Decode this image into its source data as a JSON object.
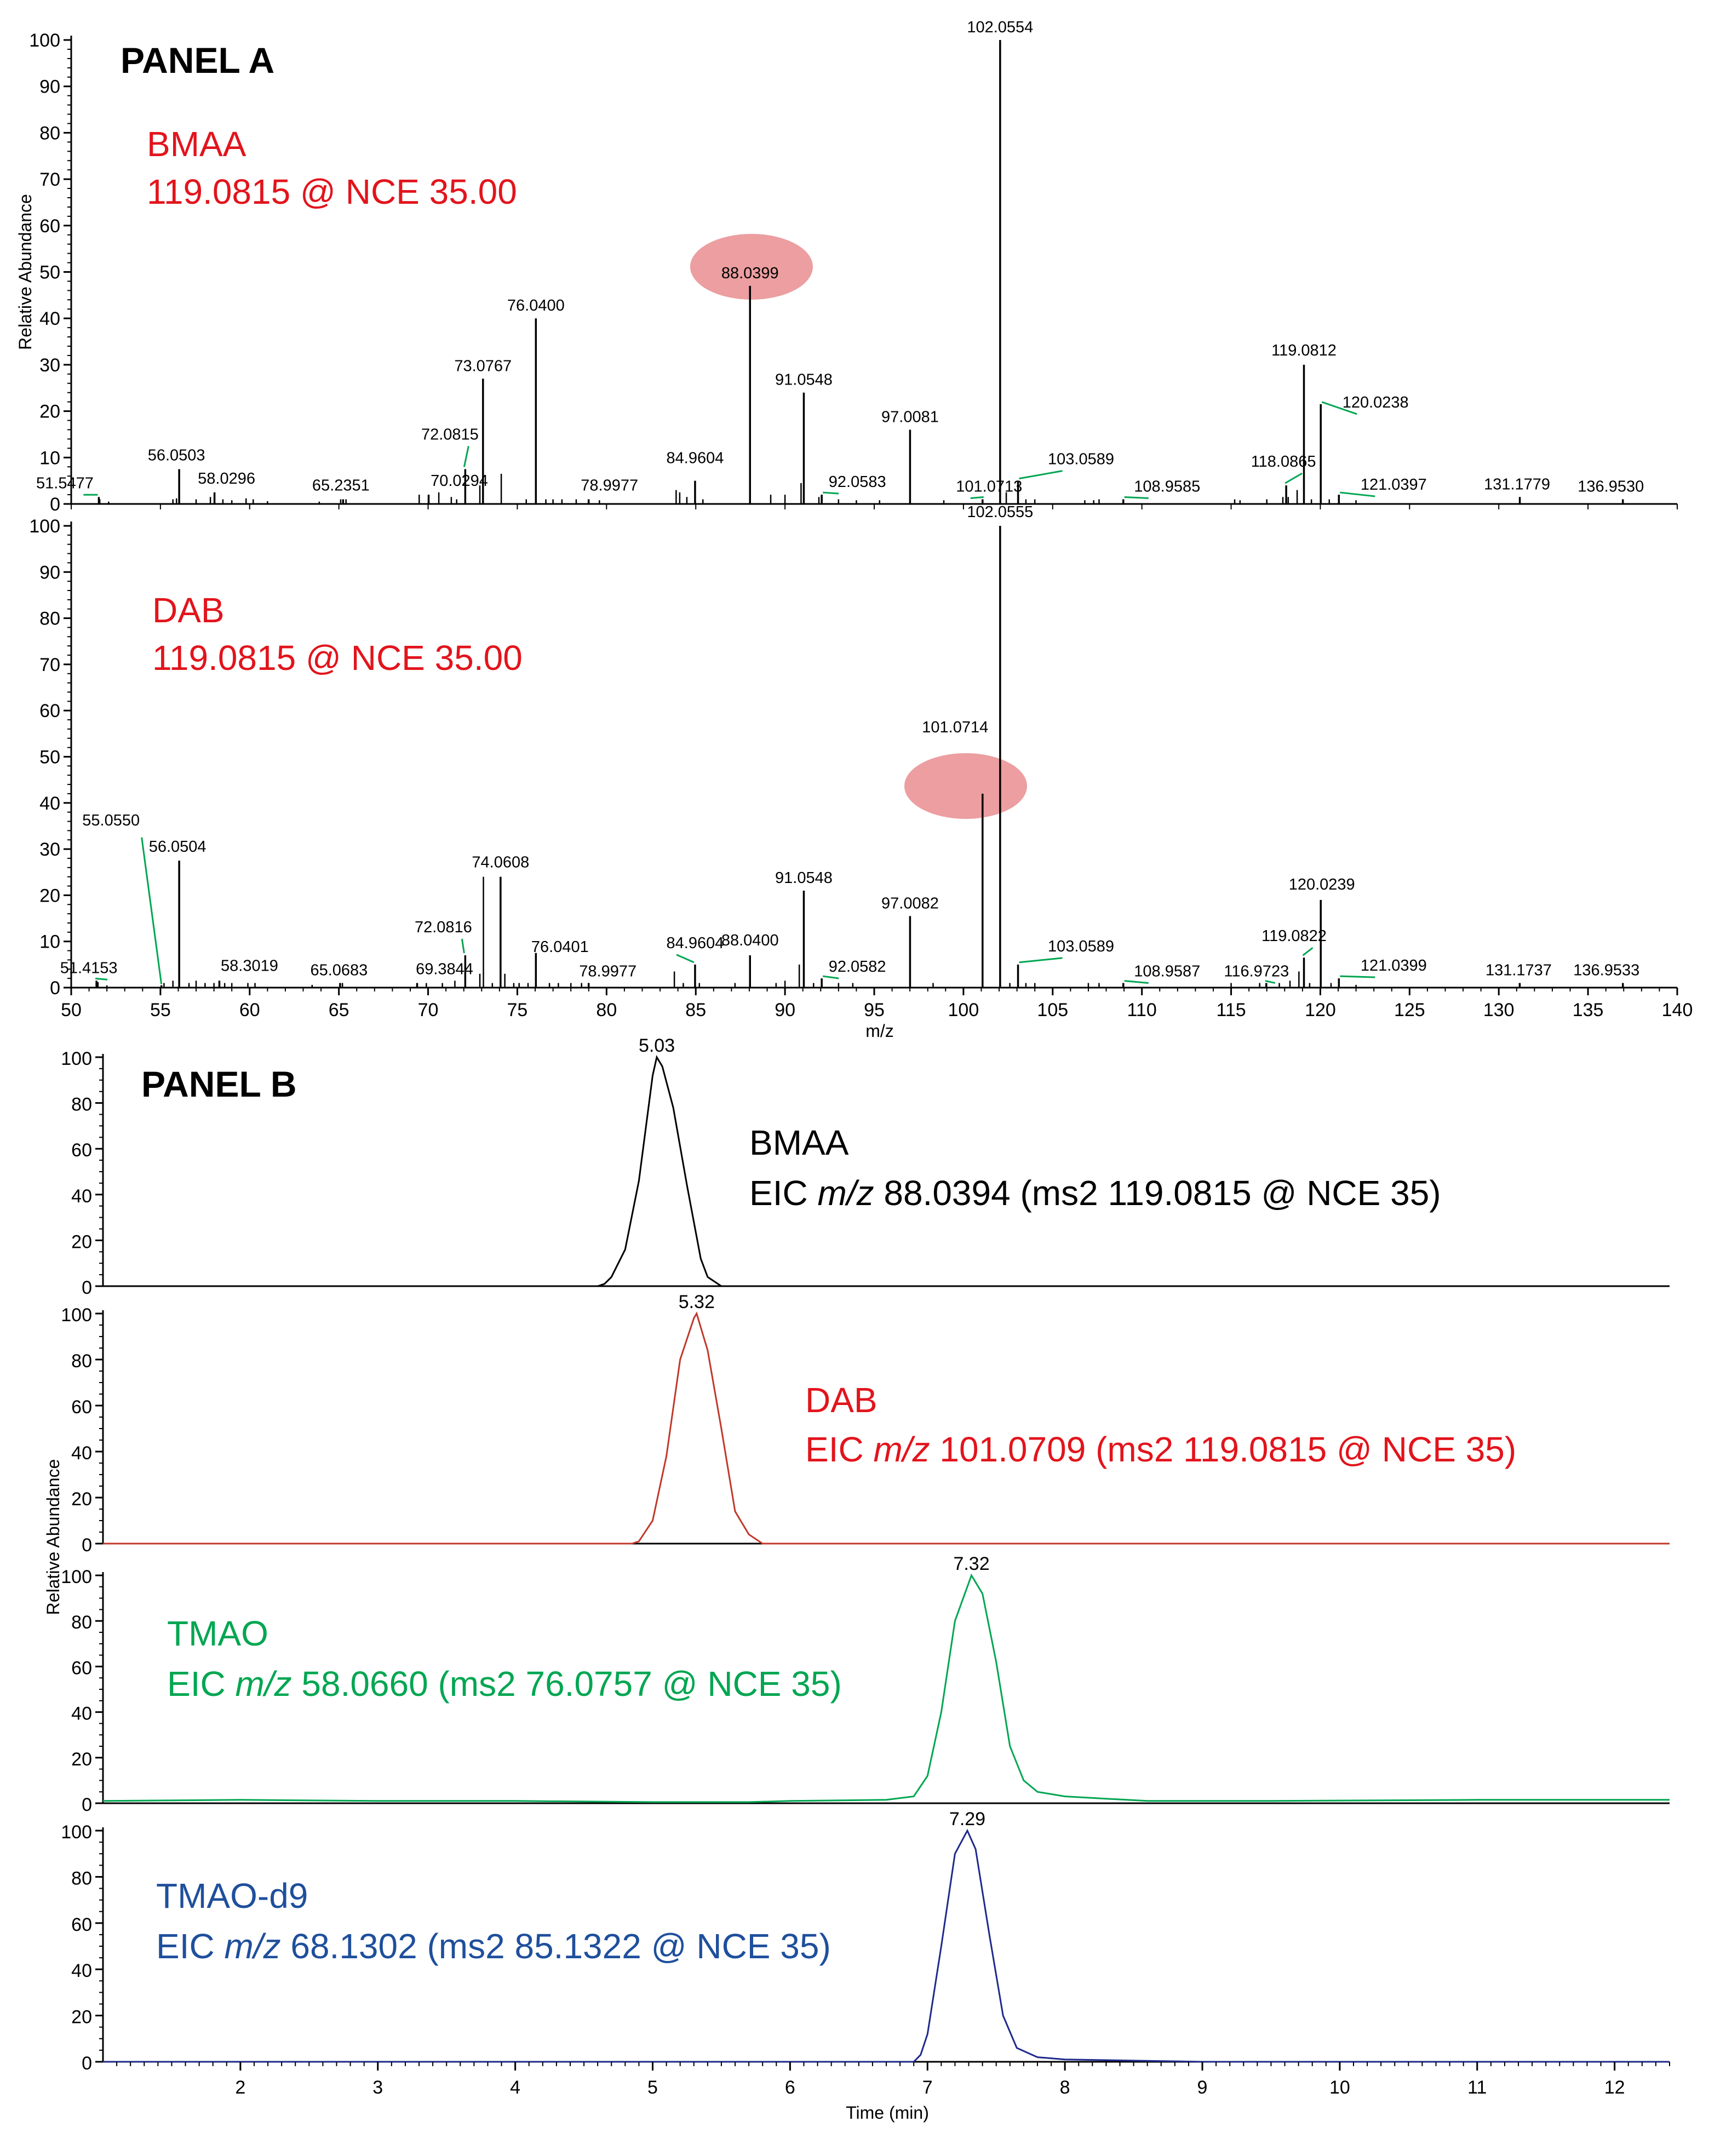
{
  "panel_a_title": "PANEL A",
  "panel_b_title": "PANEL B",
  "colors": {
    "red": "#e2141c",
    "green": "#00a651",
    "blue": "#1f4f9c",
    "black": "#000000",
    "highlight": "#e8898b"
  },
  "chart_data": [
    {
      "type": "bar",
      "subtype": "mass-spectrum",
      "panel": "A",
      "title": "",
      "ylabel": "Relative Abundance",
      "xlabel": "",
      "xlim": [
        50,
        140
      ],
      "ylim": [
        0,
        100
      ],
      "yticks": [
        "0",
        "10",
        "20",
        "30",
        "40",
        "50",
        "60",
        "70",
        "80",
        "90",
        "100"
      ],
      "annotation": {
        "line1": "BMAA",
        "line2": "119.0815 @ NCE 35.00",
        "color": "#e2141c"
      },
      "highlighted_peak": "88.0399",
      "peaks": [
        {
          "mz": 51.5477,
          "rel": 1.5,
          "label": "51.5477",
          "leader": true
        },
        {
          "mz": 56.0503,
          "rel": 7.5,
          "label": "56.0503"
        },
        {
          "mz": 58.0296,
          "rel": 2.5,
          "label": "58.0296"
        },
        {
          "mz": 65.2351,
          "rel": 1.0,
          "label": "65.2351"
        },
        {
          "mz": 70.0294,
          "rel": 2.0,
          "label": "70.0294"
        },
        {
          "mz": 72.0815,
          "rel": 7.5,
          "label": "72.0815",
          "leader": true
        },
        {
          "mz": 73.0767,
          "rel": 27.0,
          "label": "73.0767"
        },
        {
          "mz": 76.04,
          "rel": 40.0,
          "label": "76.0400"
        },
        {
          "mz": 78.9977,
          "rel": 1.0,
          "label": "78.9977"
        },
        {
          "mz": 84.9604,
          "rel": 5.0,
          "label": "84.9604"
        },
        {
          "mz": 88.0399,
          "rel": 47.0,
          "label": "88.0399"
        },
        {
          "mz": 91.0548,
          "rel": 24.0,
          "label": "91.0548"
        },
        {
          "mz": 92.0583,
          "rel": 2.0,
          "label": "92.0583",
          "leader": true
        },
        {
          "mz": 97.0081,
          "rel": 16.0,
          "label": "97.0081"
        },
        {
          "mz": 101.0713,
          "rel": 1.0,
          "label": "101.0713",
          "leader": true
        },
        {
          "mz": 102.0554,
          "rel": 100.0,
          "label": "102.0554"
        },
        {
          "mz": 103.0589,
          "rel": 5.0,
          "label": "103.0589",
          "leader": true
        },
        {
          "mz": 108.9585,
          "rel": 1.0,
          "label": "108.9585",
          "leader": true
        },
        {
          "mz": 118.0865,
          "rel": 4.0,
          "label": "118.0865",
          "leader": true
        },
        {
          "mz": 119.0812,
          "rel": 30.0,
          "label": "119.0812"
        },
        {
          "mz": 120.0238,
          "rel": 21.5,
          "label": "120.0238",
          "leader": true
        },
        {
          "mz": 121.0397,
          "rel": 2.0,
          "label": "121.0397",
          "leader": true
        },
        {
          "mz": 131.1779,
          "rel": 1.5,
          "label": "131.1779"
        },
        {
          "mz": 136.953,
          "rel": 1.0,
          "label": "136.9530"
        }
      ],
      "minor_peaks": [
        [
          51.6,
          1.0
        ],
        [
          52.1,
          0.5
        ],
        [
          55.7,
          1.0
        ],
        [
          55.9,
          1.2
        ],
        [
          57.0,
          1.0
        ],
        [
          57.8,
          1.5
        ],
        [
          58.5,
          1.0
        ],
        [
          59.0,
          0.8
        ],
        [
          59.8,
          1.2
        ],
        [
          60.2,
          1.0
        ],
        [
          61.0,
          0.6
        ],
        [
          63.9,
          0.5
        ],
        [
          65.1,
          1.0
        ],
        [
          65.4,
          1.0
        ],
        [
          69.5,
          2.0
        ],
        [
          70.6,
          2.5
        ],
        [
          71.3,
          1.5
        ],
        [
          71.6,
          1.0
        ],
        [
          72.9,
          4.0
        ],
        [
          74.1,
          6.5
        ],
        [
          75.5,
          1.0
        ],
        [
          76.6,
          1.0
        ],
        [
          77.0,
          1.0
        ],
        [
          77.5,
          1.0
        ],
        [
          78.3,
          1.0
        ],
        [
          79.6,
          0.8
        ],
        [
          83.9,
          3.0
        ],
        [
          84.1,
          2.5
        ],
        [
          84.5,
          1.5
        ],
        [
          85.4,
          1.0
        ],
        [
          89.2,
          2.0
        ],
        [
          90.0,
          2.0
        ],
        [
          90.9,
          4.5
        ],
        [
          91.9,
          1.5
        ],
        [
          93.0,
          1.0
        ],
        [
          94.0,
          0.8
        ],
        [
          95.3,
          0.8
        ],
        [
          98.9,
          0.8
        ],
        [
          102.4,
          2.5
        ],
        [
          103.5,
          1.0
        ],
        [
          104.0,
          1.0
        ],
        [
          106.8,
          0.8
        ],
        [
          107.3,
          0.8
        ],
        [
          107.6,
          1.0
        ],
        [
          115.2,
          1.0
        ],
        [
          115.5,
          0.8
        ],
        [
          117.0,
          1.0
        ],
        [
          117.9,
          1.5
        ],
        [
          118.2,
          1.5
        ],
        [
          118.7,
          3.0
        ],
        [
          119.5,
          1.0
        ],
        [
          120.5,
          1.0
        ],
        [
          122.0,
          0.8
        ]
      ]
    },
    {
      "type": "bar",
      "subtype": "mass-spectrum",
      "panel": "A",
      "title": "",
      "ylabel": "",
      "xlabel": "m/z",
      "xlim": [
        50,
        140
      ],
      "ylim": [
        0,
        100
      ],
      "yticks": [
        "0",
        "10",
        "20",
        "30",
        "40",
        "50",
        "60",
        "70",
        "80",
        "90",
        "100"
      ],
      "xticks": [
        "50",
        "55",
        "60",
        "65",
        "70",
        "75",
        "80",
        "85",
        "90",
        "95",
        "100",
        "105",
        "110",
        "115",
        "120",
        "125",
        "130",
        "135",
        "140"
      ],
      "annotation": {
        "line1": "DAB",
        "line2": "119.0815 @ NCE 35.00",
        "color": "#e2141c"
      },
      "highlighted_peak": "101.0714",
      "peaks": [
        {
          "mz": 51.4153,
          "rel": 1.5,
          "label": "51.4153",
          "leader": true
        },
        {
          "mz": 55.055,
          "rel": 0.5,
          "label": "55.0550",
          "leader": true
        },
        {
          "mz": 56.0504,
          "rel": 27.5,
          "label": "56.0504"
        },
        {
          "mz": 58.3019,
          "rel": 1.5,
          "label": "58.3019"
        },
        {
          "mz": 65.0683,
          "rel": 1.0,
          "label": "65.0683"
        },
        {
          "mz": 69.3844,
          "rel": 1.0,
          "label": "69.3844"
        },
        {
          "mz": 72.0816,
          "rel": 7.0,
          "label": "72.0816",
          "leader": true
        },
        {
          "mz": 74.0608,
          "rel": 24.0,
          "label": "74.0608"
        },
        {
          "mz": 76.0401,
          "rel": 7.5,
          "label": "76.0401"
        },
        {
          "mz": 78.9977,
          "rel": 1.0,
          "label": "78.9977"
        },
        {
          "mz": 84.9604,
          "rel": 5.0,
          "label": "84.9604",
          "leader": true
        },
        {
          "mz": 88.04,
          "rel": 7.0,
          "label": "88.0400"
        },
        {
          "mz": 91.0548,
          "rel": 21.0,
          "label": "91.0548"
        },
        {
          "mz": 92.0582,
          "rel": 2.0,
          "label": "92.0582",
          "leader": true
        },
        {
          "mz": 97.0082,
          "rel": 15.5,
          "label": "97.0082"
        },
        {
          "mz": 101.0714,
          "rel": 42.0,
          "label": "101.0714"
        },
        {
          "mz": 102.0555,
          "rel": 100.0,
          "label": "102.0555"
        },
        {
          "mz": 103.0589,
          "rel": 5.0,
          "label": "103.0589",
          "leader": true
        },
        {
          "mz": 108.9587,
          "rel": 1.0,
          "label": "108.9587",
          "leader": true
        },
        {
          "mz": 116.9723,
          "rel": 1.0,
          "label": "116.9723",
          "leader": true
        },
        {
          "mz": 119.0822,
          "rel": 6.5,
          "label": "119.0822",
          "leader": true
        },
        {
          "mz": 120.0239,
          "rel": 19.0,
          "label": "120.0239"
        },
        {
          "mz": 121.0399,
          "rel": 2.0,
          "label": "121.0399",
          "leader": true
        },
        {
          "mz": 131.1737,
          "rel": 1.0,
          "label": "131.1737"
        },
        {
          "mz": 136.9533,
          "rel": 1.0,
          "label": "136.9533"
        }
      ],
      "minor_peaks": [
        [
          51.5,
          1.2
        ],
        [
          52.0,
          0.5
        ],
        [
          55.2,
          1.0
        ],
        [
          55.7,
          1.5
        ],
        [
          56.6,
          1.0
        ],
        [
          57.0,
          1.5
        ],
        [
          57.5,
          1.0
        ],
        [
          58.0,
          1.0
        ],
        [
          58.6,
          1.0
        ],
        [
          59.0,
          1.0
        ],
        [
          59.9,
          1.0
        ],
        [
          60.3,
          1.0
        ],
        [
          63.5,
          0.6
        ],
        [
          65.2,
          1.0
        ],
        [
          69.9,
          1.0
        ],
        [
          70.8,
          1.0
        ],
        [
          71.5,
          1.5
        ],
        [
          72.9,
          3.0
        ],
        [
          73.1,
          24.0
        ],
        [
          73.6,
          1.0
        ],
        [
          74.3,
          3.0
        ],
        [
          74.8,
          1.0
        ],
        [
          75.1,
          1.0
        ],
        [
          75.6,
          1.0
        ],
        [
          76.8,
          1.0
        ],
        [
          77.3,
          1.0
        ],
        [
          78.0,
          1.0
        ],
        [
          78.6,
          1.0
        ],
        [
          83.8,
          3.5
        ],
        [
          84.3,
          1.0
        ],
        [
          85.2,
          1.0
        ],
        [
          87.2,
          1.0
        ],
        [
          89.5,
          1.0
        ],
        [
          90.0,
          1.5
        ],
        [
          90.8,
          5.0
        ],
        [
          91.6,
          1.0
        ],
        [
          93.0,
          1.0
        ],
        [
          93.8,
          1.0
        ],
        [
          98.3,
          1.0
        ],
        [
          102.6,
          1.0
        ],
        [
          103.5,
          1.0
        ],
        [
          104.0,
          1.0
        ],
        [
          107.0,
          1.0
        ],
        [
          107.6,
          1.0
        ],
        [
          115.0,
          1.0
        ],
        [
          116.6,
          1.0
        ],
        [
          117.7,
          1.0
        ],
        [
          118.3,
          1.5
        ],
        [
          118.8,
          3.5
        ],
        [
          119.4,
          1.0
        ],
        [
          120.6,
          1.0
        ],
        [
          122.0,
          0.6
        ]
      ]
    },
    {
      "type": "line",
      "subtype": "chromatogram",
      "panel": "B",
      "title": "",
      "ylabel": "",
      "xlim": [
        1.0,
        12.4
      ],
      "ylim": [
        0,
        100
      ],
      "yticks": [
        "0",
        "20",
        "40",
        "60",
        "80",
        "100"
      ],
      "color": "#000000",
      "peak_rt": "5.03",
      "annotation": {
        "line1": "BMAA",
        "line2_prefix": "EIC ",
        "line2_italic": "m/z",
        "line2_suffix": " 88.0394 (ms2 119.0815 @ NCE 35)",
        "color": "#000000"
      },
      "x": [
        1.0,
        4.6,
        4.65,
        4.7,
        4.8,
        4.9,
        5.0,
        5.03,
        5.07,
        5.15,
        5.25,
        5.35,
        5.4,
        5.5,
        12.4
      ],
      "y": [
        0,
        0,
        1,
        4,
        16,
        46,
        92,
        100,
        96,
        78,
        44,
        12,
        4,
        0,
        0
      ]
    },
    {
      "type": "line",
      "subtype": "chromatogram",
      "panel": "B",
      "title": "",
      "ylabel": "Relative Abundance",
      "xlim": [
        1.0,
        12.4
      ],
      "ylim": [
        0,
        100
      ],
      "yticks": [
        "0",
        "20",
        "40",
        "60",
        "80",
        "100"
      ],
      "color": "#c0392b",
      "peak_rt": "5.32",
      "annotation": {
        "line1": "DAB",
        "line2_prefix": "EIC ",
        "line2_italic": "m/z",
        "line2_suffix": " 101.0709 (ms2 119.0815 @ NCE 35)",
        "color": "#e2141c"
      },
      "x": [
        1.0,
        4.85,
        4.9,
        5.0,
        5.1,
        5.2,
        5.3,
        5.32,
        5.4,
        5.5,
        5.6,
        5.7,
        5.8,
        12.4
      ],
      "y": [
        0,
        0,
        1,
        10,
        38,
        80,
        98,
        100,
        84,
        50,
        14,
        4,
        0,
        0
      ]
    },
    {
      "type": "line",
      "subtype": "chromatogram",
      "panel": "B",
      "title": "",
      "ylabel": "",
      "xlim": [
        1.0,
        12.4
      ],
      "ylim": [
        0,
        100
      ],
      "yticks": [
        "0",
        "20",
        "40",
        "60",
        "80",
        "100"
      ],
      "color": "#00a651",
      "peak_rt": "7.32",
      "annotation": {
        "line1": "TMAO",
        "line2_prefix": "EIC ",
        "line2_italic": "m/z",
        "line2_suffix": " 58.0660 (ms2 76.0757 @ NCE 35)",
        "color": "#00a651"
      },
      "x": [
        1.0,
        2.0,
        3.0,
        4.0,
        5.0,
        5.7,
        6.0,
        6.7,
        6.9,
        7.0,
        7.1,
        7.2,
        7.32,
        7.4,
        7.5,
        7.6,
        7.7,
        7.8,
        8.0,
        8.3,
        8.6,
        9.5,
        11.0,
        12.4
      ],
      "y": [
        1,
        1.5,
        1,
        1,
        0.5,
        0.5,
        1,
        1.5,
        3,
        12,
        40,
        80,
        100,
        92,
        62,
        25,
        10,
        5,
        3,
        2,
        1,
        1,
        1.5,
        1.5
      ]
    },
    {
      "type": "line",
      "subtype": "chromatogram",
      "panel": "B",
      "title": "",
      "ylabel": "",
      "xlabel": "Time (min)",
      "xlim": [
        1.0,
        12.4
      ],
      "ylim": [
        0,
        100
      ],
      "yticks": [
        "0",
        "20",
        "40",
        "60",
        "80",
        "100"
      ],
      "xticks": [
        "2",
        "3",
        "4",
        "5",
        "6",
        "7",
        "8",
        "9",
        "10",
        "11",
        "12"
      ],
      "color": "#1f2a8c",
      "peak_rt": "7.29",
      "annotation": {
        "line1": "TMAO-d9",
        "line2_prefix": "EIC ",
        "line2_italic": "m/z",
        "line2_suffix": " 68.1302 (ms2 85.1322 @ NCE 35)",
        "color": "#1f4f9c"
      },
      "x": [
        1.0,
        6.9,
        6.95,
        7.0,
        7.1,
        7.2,
        7.29,
        7.35,
        7.45,
        7.55,
        7.65,
        7.8,
        8.0,
        8.5,
        9.0,
        12.4
      ],
      "y": [
        0,
        0,
        3,
        12,
        50,
        90,
        100,
        92,
        55,
        20,
        6,
        2,
        1,
        0.5,
        0,
        0
      ]
    }
  ]
}
